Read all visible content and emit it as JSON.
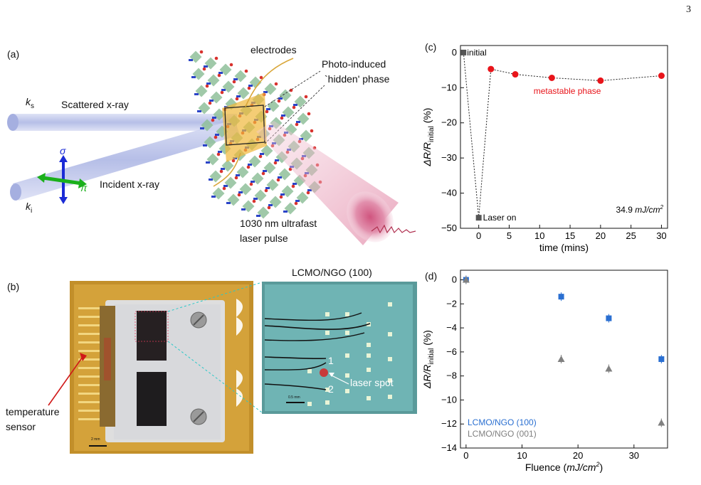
{
  "page_number": "3",
  "panel_a": {
    "label": "(a)",
    "electrodes": "electrodes",
    "hidden_phase_line1": "Photo-induced",
    "hidden_phase_line2": "`hidden' phase",
    "ks_letter": "k",
    "ks_sub": "s",
    "scattered": "Scattered x-ray",
    "ki_letter": "k",
    "ki_sub": "i",
    "incident": "Incident x-ray",
    "sigma": "σ",
    "pi": "π",
    "laser_line1": "1030 nm ultrafast",
    "laser_line2": "laser pulse"
  },
  "panel_b": {
    "label": "(b)",
    "sample_title": "LCMO/NGO (100)",
    "temp_line1": "temperature",
    "temp_line2": "sensor",
    "laser_spot": "laser spot",
    "marker1": "1",
    "marker2": "2",
    "scale_left": "2 mm",
    "scale_right": "0.5 mm"
  },
  "chart_data": [
    {
      "panel": "(c)",
      "type": "scatter",
      "xlabel": "time (mins)",
      "ylabel": "ΔR/R_initial (%)",
      "ylabel_parts": {
        "delta": "ΔR/R",
        "sub": "initial",
        "unit": " (%)"
      },
      "xlim": [
        -3,
        31
      ],
      "ylim": [
        -50,
        2
      ],
      "xticks": [
        0,
        5,
        10,
        15,
        20,
        25,
        30
      ],
      "yticks": [
        0,
        -10,
        -20,
        -30,
        -40,
        -50
      ],
      "series": [
        {
          "color": "#e8141a",
          "marker": "circle",
          "x": [
            2,
            6,
            12,
            20,
            30
          ],
          "y": [
            -4.7,
            -6.2,
            -7.2,
            -8.0,
            -6.6
          ]
        },
        {
          "color": "#555555",
          "marker": "square",
          "x": [
            -2.5,
            0
          ],
          "y": [
            0,
            -47
          ]
        }
      ],
      "path": {
        "x": [
          -2.5,
          0,
          2,
          6,
          12,
          20,
          30
        ],
        "y": [
          0,
          -47,
          -4.7,
          -6.2,
          -7.2,
          -8.0,
          -6.6
        ]
      },
      "annotations": {
        "initial": "initial",
        "laser_on": "Laser on",
        "metastable": "metastable phase",
        "fluence": "34.9",
        "fluence_unit": "mJ/cm",
        "fluence_exp": "2"
      }
    },
    {
      "panel": "(d)",
      "type": "scatter",
      "xlabel": "Fluence (mJ/cm²)",
      "xlabel_parts": {
        "pre": "Fluence (",
        "unit": "mJ/cm",
        "exp": "2",
        "post": ")"
      },
      "ylabel": "ΔR/R_initial (%)",
      "ylabel_parts": {
        "delta": "ΔR/R",
        "sub": "initial",
        "unit": " (%)"
      },
      "xlim": [
        -1,
        36
      ],
      "ylim": [
        -14,
        0.8
      ],
      "xticks": [
        0,
        10,
        20,
        30
      ],
      "yticks": [
        0,
        -2,
        -4,
        -6,
        -8,
        -10,
        -12,
        -14
      ],
      "series": [
        {
          "name": "LCMO/NGO (100)",
          "color": "#2a6fd1",
          "marker": "square",
          "x": [
            0,
            17,
            25.5,
            34.9
          ],
          "y": [
            0,
            -1.4,
            -3.2,
            -6.6
          ]
        },
        {
          "name": "LCMO/NGO (001)",
          "color": "#808080",
          "marker": "triangle",
          "x": [
            0,
            17,
            25.5,
            34.9
          ],
          "y": [
            0,
            -6.6,
            -7.4,
            -11.9
          ]
        }
      ],
      "legend": "bottom-left"
    }
  ]
}
